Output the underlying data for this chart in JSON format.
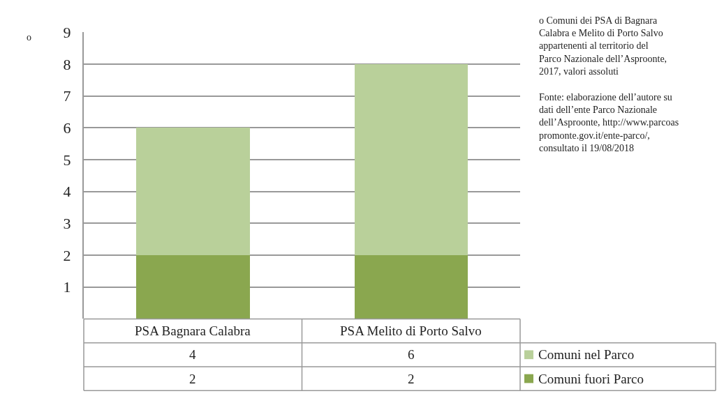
{
  "chart_data": {
    "type": "bar",
    "stacked": true,
    "title": "o Comuni dei PSA di Bagnara Calabra e Melito di Porto Salvo appartenenti al territorio del Parco Nazionale dell’Asproonte, 2017, valori assoluti",
    "categories": [
      "PSA Bagnara Calabra",
      "PSA Melito di Porto Salvo"
    ],
    "series": [
      {
        "name": "Comuni fuori Parco",
        "color": "#8aa74f",
        "values": [
          2,
          2
        ]
      },
      {
        "name": "Comuni nel Parco",
        "color": "#b9d09a",
        "values": [
          4,
          6
        ]
      }
    ],
    "ylim": [
      0,
      9
    ],
    "yticks": [
      1,
      2,
      3,
      4,
      5,
      6,
      7,
      8,
      9
    ],
    "grid": "y",
    "tick_labels": "y",
    "data_labels": true,
    "legend": "bottom right",
    "annotations": [
      "o",
      "Fonte: elaborazione dell’autore su dati dell’ente Parco Nazionale dell’Asproonte, http://www.parcoaspromonte.gov.it/ente-parco/, consultato il 19/08/2018"
    ]
  }
}
